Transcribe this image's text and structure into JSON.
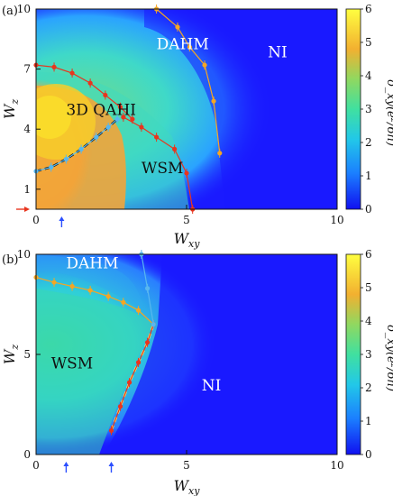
{
  "panels": [
    {
      "id": "a",
      "label": "(a)",
      "xlabel": "W_xy",
      "ylabel": "W_z",
      "xlim": [
        0,
        10
      ],
      "ylim": [
        0,
        10
      ],
      "xticks": [
        "0",
        "5",
        "10"
      ],
      "yticks": [
        "1",
        "4",
        "7",
        "10"
      ],
      "regions": [
        {
          "name": "DAHM",
          "x": 4.0,
          "y": 8.0,
          "color": "#ffffff"
        },
        {
          "name": "NI",
          "x": 7.7,
          "y": 7.6,
          "color": "#ffffff"
        },
        {
          "name": "3D QAHI",
          "x": 1.0,
          "y": 4.7,
          "color": "#111111"
        },
        {
          "name": "WSM",
          "x": 3.5,
          "y": 1.8,
          "color": "#111111"
        }
      ],
      "series": [
        {
          "role": "upper-boundary",
          "color": "#e8351e",
          "x": [
            0.0,
            0.6,
            1.2,
            1.8,
            2.3,
            2.8,
            3.2
          ],
          "y": [
            7.2,
            7.1,
            6.8,
            6.3,
            5.7,
            5.1,
            4.5
          ]
        },
        {
          "role": "inner-boundary",
          "color": "#58b7ef",
          "x": [
            0.0,
            0.5,
            1.0,
            1.5,
            2.0,
            2.4,
            2.7
          ],
          "y": [
            1.9,
            2.1,
            2.5,
            3.0,
            3.6,
            4.1,
            4.5
          ]
        },
        {
          "role": "wsm-ni-boundary",
          "color": "#e8351e",
          "x": [
            2.9,
            3.5,
            4.0,
            4.6,
            5.0,
            5.2
          ],
          "y": [
            4.6,
            4.1,
            3.6,
            3.0,
            1.8,
            0.0
          ]
        },
        {
          "role": "dahm-ni-boundary",
          "color": "#f5a623",
          "x": [
            4.0,
            4.7,
            5.1,
            5.6,
            5.9,
            6.1
          ],
          "y": [
            10.0,
            9.1,
            8.1,
            7.2,
            5.4,
            2.8
          ]
        }
      ],
      "marker_arrows": [
        {
          "direction": "x",
          "color": "#e8351e",
          "value": 0.0
        },
        {
          "direction": "y",
          "color": "#2b4fff",
          "value": 0.85
        }
      ]
    },
    {
      "id": "b",
      "label": "(b)",
      "xlabel": "W_xy",
      "ylabel": "W_z",
      "xlim": [
        0,
        10
      ],
      "ylim": [
        0,
        10
      ],
      "xticks": [
        "0",
        "5",
        "10"
      ],
      "yticks": [
        "0",
        "5",
        "10"
      ],
      "regions": [
        {
          "name": "DAHM",
          "x": 1.0,
          "y": 9.3,
          "color": "#ffffff"
        },
        {
          "name": "NI",
          "x": 5.5,
          "y": 3.2,
          "color": "#ffffff"
        },
        {
          "name": "WSM",
          "x": 0.5,
          "y": 4.3,
          "color": "#111111"
        }
      ],
      "series": [
        {
          "role": "dahm-wsm-boundary",
          "color": "#f5a623",
          "x": [
            0.0,
            0.6,
            1.2,
            1.8,
            2.4,
            2.9,
            3.4,
            3.9
          ],
          "y": [
            8.85,
            8.6,
            8.4,
            8.2,
            7.9,
            7.6,
            7.2,
            6.5
          ]
        },
        {
          "role": "wsm-ni-boundary",
          "color": "#e8351e",
          "x": [
            2.5,
            2.8,
            3.1,
            3.4,
            3.7,
            3.9
          ],
          "y": [
            1.2,
            2.4,
            3.6,
            4.6,
            5.6,
            6.5
          ]
        },
        {
          "role": "dahm-ni-boundary",
          "color": "#58b7ef",
          "x": [
            3.9,
            3.7,
            3.5
          ],
          "y": [
            6.5,
            8.3,
            10.0
          ]
        }
      ],
      "marker_arrows": [
        {
          "direction": "y",
          "color": "#2b4fff",
          "value": 1.0
        },
        {
          "direction": "y",
          "color": "#2b4fff",
          "value": 2.5
        }
      ]
    }
  ],
  "colorbars": [
    {
      "label": "σ_xy(e²/6h)",
      "range": [
        0,
        6
      ],
      "ticks": [
        "0",
        "1",
        "2",
        "3",
        "4",
        "5",
        "6"
      ]
    },
    {
      "label": "σ_xy(e²/6h)",
      "range": [
        0,
        6
      ],
      "ticks": [
        "0",
        "1",
        "2",
        "3",
        "4",
        "5",
        "6"
      ]
    }
  ],
  "colors": {
    "min": "#1a1aff",
    "mid": "#3cdca0",
    "high": "#f5a623",
    "max": "#ffff40"
  }
}
